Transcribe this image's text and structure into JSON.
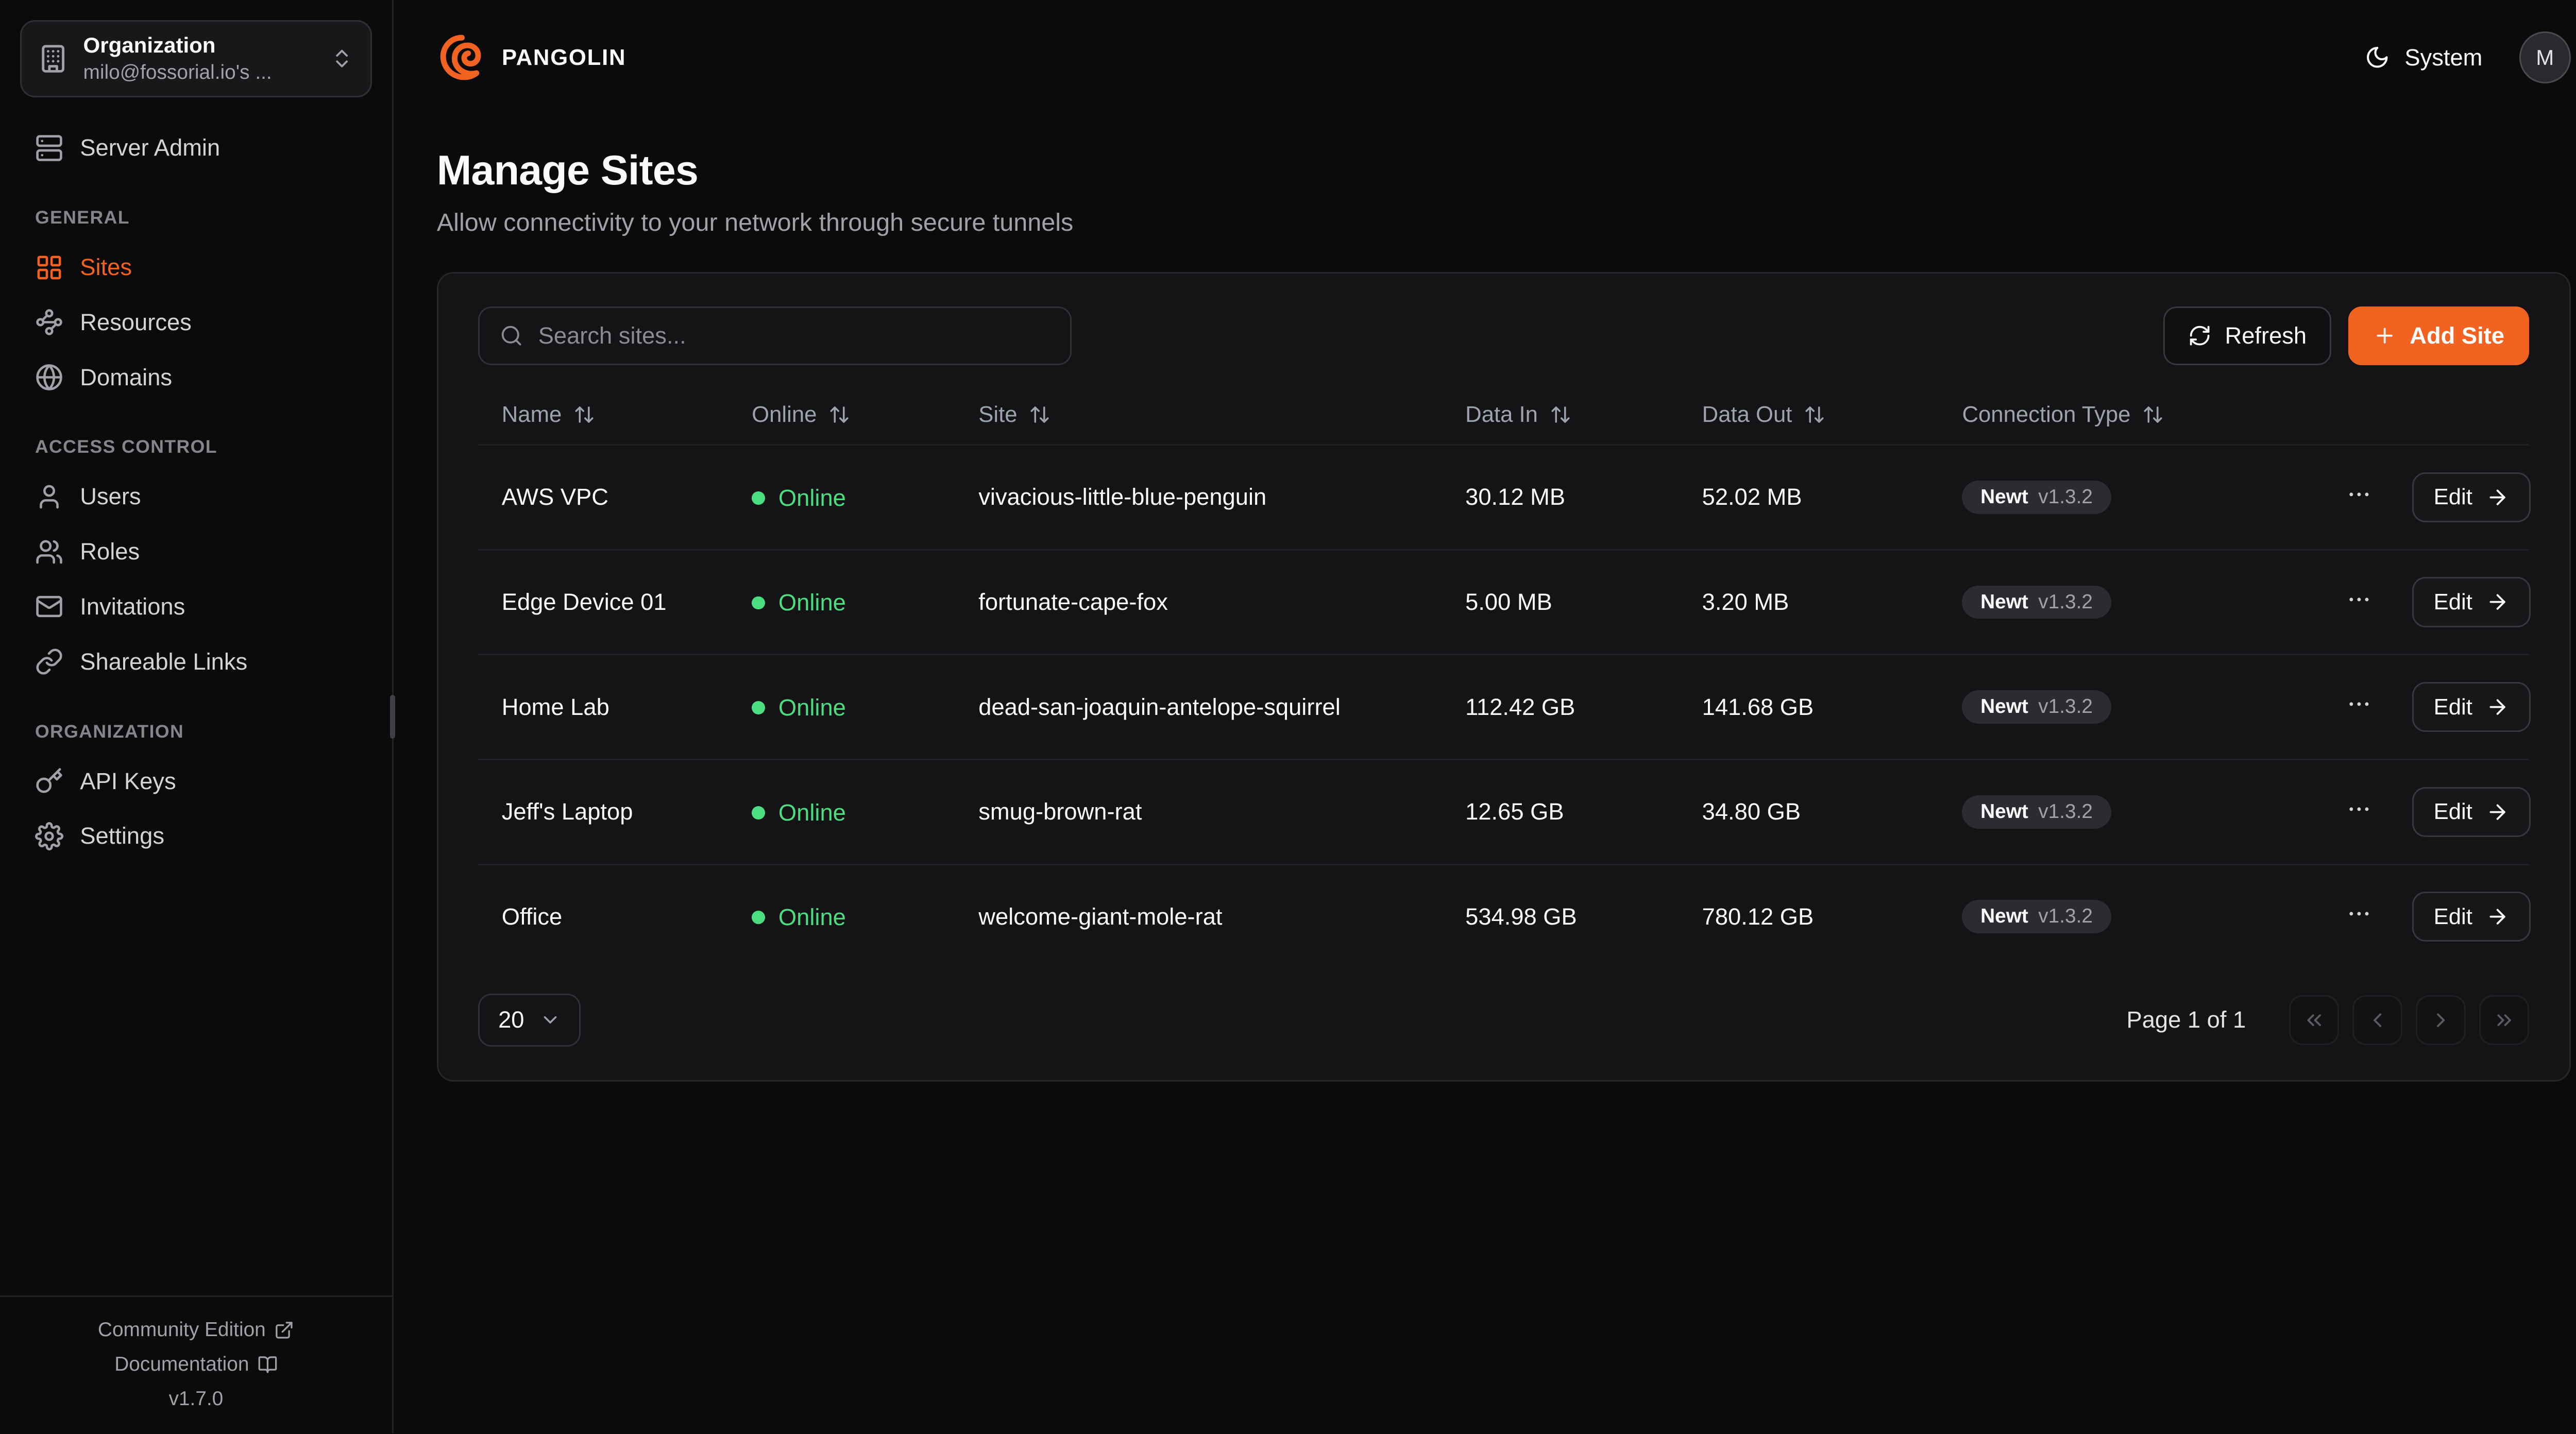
{
  "colors": {
    "accent": "#f26322",
    "online": "#4ade80"
  },
  "brand": {
    "name": "PANGOLIN"
  },
  "header": {
    "theme_label": "System",
    "avatar_initial": "M"
  },
  "org_switcher": {
    "label": "Organization",
    "value": "milo@fossorial.io's ..."
  },
  "sidebar": {
    "server_admin_label": "Server Admin",
    "sections": [
      {
        "label": "GENERAL",
        "items": [
          {
            "label": "Sites",
            "icon": "sites",
            "active": true
          },
          {
            "label": "Resources",
            "icon": "resources",
            "active": false
          },
          {
            "label": "Domains",
            "icon": "globe",
            "active": false
          }
        ]
      },
      {
        "label": "ACCESS CONTROL",
        "items": [
          {
            "label": "Users",
            "icon": "user",
            "active": false
          },
          {
            "label": "Roles",
            "icon": "users",
            "active": false
          },
          {
            "label": "Invitations",
            "icon": "mail",
            "active": false
          },
          {
            "label": "Shareable Links",
            "icon": "link",
            "active": false
          }
        ]
      },
      {
        "label": "ORGANIZATION",
        "items": [
          {
            "label": "API Keys",
            "icon": "key",
            "active": false
          },
          {
            "label": "Settings",
            "icon": "settings",
            "active": false
          }
        ]
      }
    ],
    "footer": {
      "community_edition": "Community Edition",
      "documentation": "Documentation",
      "version": "v1.7.0"
    }
  },
  "page": {
    "title": "Manage Sites",
    "subtitle": "Allow connectivity to your network through secure tunnels"
  },
  "toolbar": {
    "search_placeholder": "Search sites...",
    "refresh_label": "Refresh",
    "add_site_label": "Add Site"
  },
  "table": {
    "columns": [
      "Name",
      "Online",
      "Site",
      "Data In",
      "Data Out",
      "Connection Type"
    ],
    "edit_label": "Edit",
    "rows": [
      {
        "name": "AWS VPC",
        "online": "Online",
        "site": "vivacious-little-blue-penguin",
        "data_in": "30.12 MB",
        "data_out": "52.02 MB",
        "conn_type": "Newt",
        "conn_version": "v1.3.2"
      },
      {
        "name": "Edge Device 01",
        "online": "Online",
        "site": "fortunate-cape-fox",
        "data_in": "5.00 MB",
        "data_out": "3.20 MB",
        "conn_type": "Newt",
        "conn_version": "v1.3.2"
      },
      {
        "name": "Home Lab",
        "online": "Online",
        "site": "dead-san-joaquin-antelope-squirrel",
        "data_in": "112.42 GB",
        "data_out": "141.68 GB",
        "conn_type": "Newt",
        "conn_version": "v1.3.2"
      },
      {
        "name": "Jeff's Laptop",
        "online": "Online",
        "site": "smug-brown-rat",
        "data_in": "12.65 GB",
        "data_out": "34.80 GB",
        "conn_type": "Newt",
        "conn_version": "v1.3.2"
      },
      {
        "name": "Office",
        "online": "Online",
        "site": "welcome-giant-mole-rat",
        "data_in": "534.98 GB",
        "data_out": "780.12 GB",
        "conn_type": "Newt",
        "conn_version": "v1.3.2"
      }
    ]
  },
  "pagination": {
    "page_size": "20",
    "status": "Page 1 of 1"
  }
}
